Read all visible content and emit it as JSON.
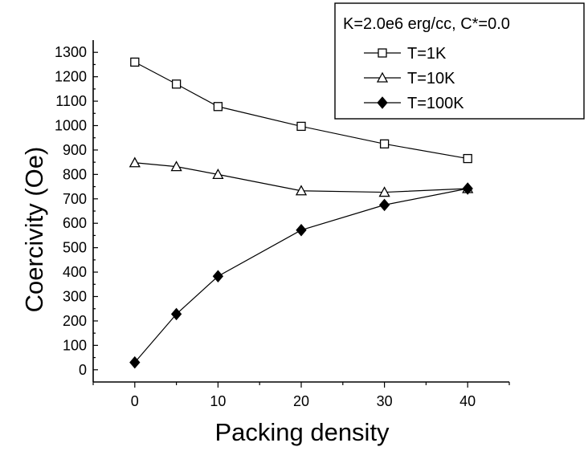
{
  "chart_data": {
    "type": "line",
    "title": "",
    "xlabel": "Packing density",
    "ylabel": "Coercivity (Oe)",
    "xlim": [
      -5,
      45
    ],
    "ylim": [
      -50,
      1350
    ],
    "x": [
      0,
      5,
      10,
      20,
      30,
      40
    ],
    "x_ticks": [
      "0",
      "10",
      "20",
      "30",
      "40"
    ],
    "y_ticks": [
      "0",
      "100",
      "200",
      "300",
      "400",
      "500",
      "600",
      "700",
      "800",
      "900",
      "1000",
      "1100",
      "1200",
      "1300"
    ],
    "legend": {
      "title": "K=2.0e6 erg/cc, C*=0.0",
      "placement": "top-right"
    },
    "grid": false,
    "series": [
      {
        "name": "T=1K",
        "marker": "open-square",
        "values": [
          1260,
          1170,
          1078,
          997,
          925,
          865
        ]
      },
      {
        "name": "T=10K",
        "marker": "open-triangle",
        "values": [
          848,
          832,
          800,
          733,
          727,
          742
        ]
      },
      {
        "name": "T=100K",
        "marker": "filled-diamond",
        "values": [
          30,
          228,
          383,
          572,
          675,
          742
        ]
      }
    ]
  }
}
